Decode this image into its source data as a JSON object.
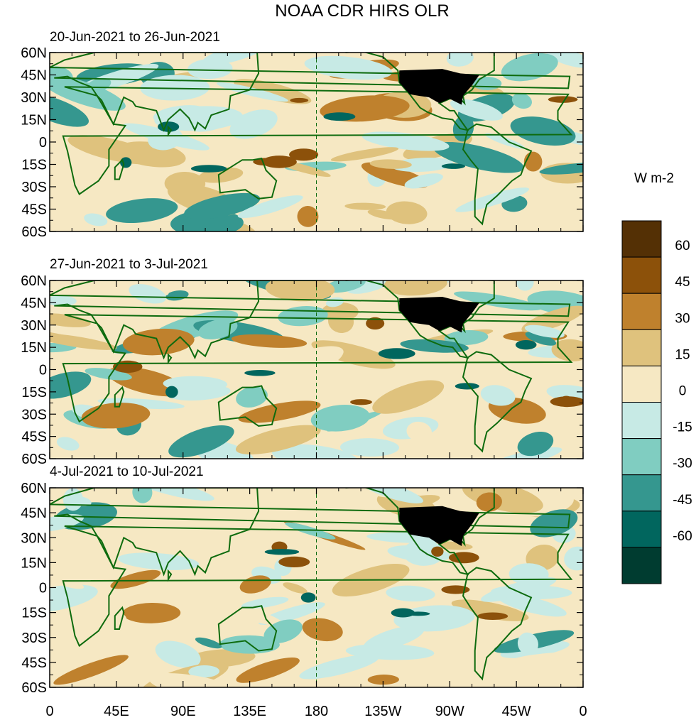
{
  "title": "NOAA CDR HIRS OLR",
  "panels": [
    {
      "label": "20-Jun-2021 to 26-Jun-2021"
    },
    {
      "label": "27-Jun-2021 to 3-Jul-2021"
    },
    {
      "label": "4-Jul-2021 to 10-Jul-2021"
    }
  ],
  "y_tick_labels": [
    "60N",
    "45N",
    "30N",
    "15N",
    "0",
    "15S",
    "30S",
    "45S",
    "60S"
  ],
  "x_tick_labels": [
    "0",
    "45E",
    "90E",
    "135E",
    "180",
    "135W",
    "90W",
    "45W",
    "0"
  ],
  "colorbar": {
    "unit": "W m-2",
    "tick_labels": [
      "60",
      "45",
      "30",
      "15",
      "0",
      "-15",
      "-30",
      "-45",
      "-60"
    ],
    "colors": [
      "#543005",
      "#8c510a",
      "#bf812d",
      "#dfc27d",
      "#f6e8c3",
      "#c7eae5",
      "#80cdc1",
      "#35978f",
      "#01665e",
      "#003c30"
    ]
  },
  "colors": {
    "land_outline": "#0e6b0e",
    "masked_region": "#000000"
  }
}
